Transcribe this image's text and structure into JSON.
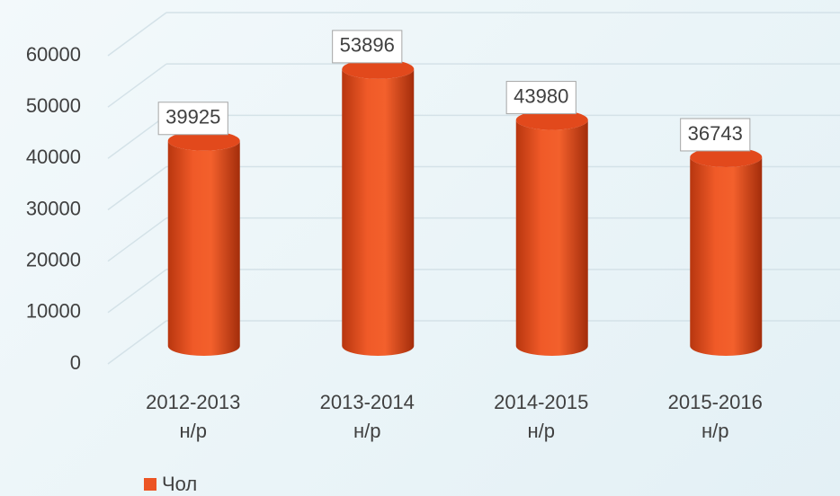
{
  "chart_data": {
    "type": "bar3d",
    "categories": [
      "2012-2013 н/р",
      "2013-2014 н/р",
      "2014-2015 н/р",
      "2015-2016 н/р"
    ],
    "series": [
      {
        "name": "Чол",
        "color": "#ec5424",
        "values": [
          39925,
          53896,
          43980,
          36743
        ]
      }
    ],
    "ylim": [
      0,
      60000
    ],
    "yticks": [
      0,
      10000,
      20000,
      30000,
      40000,
      50000,
      60000
    ],
    "grid": true,
    "legend": "bottom-left"
  }
}
